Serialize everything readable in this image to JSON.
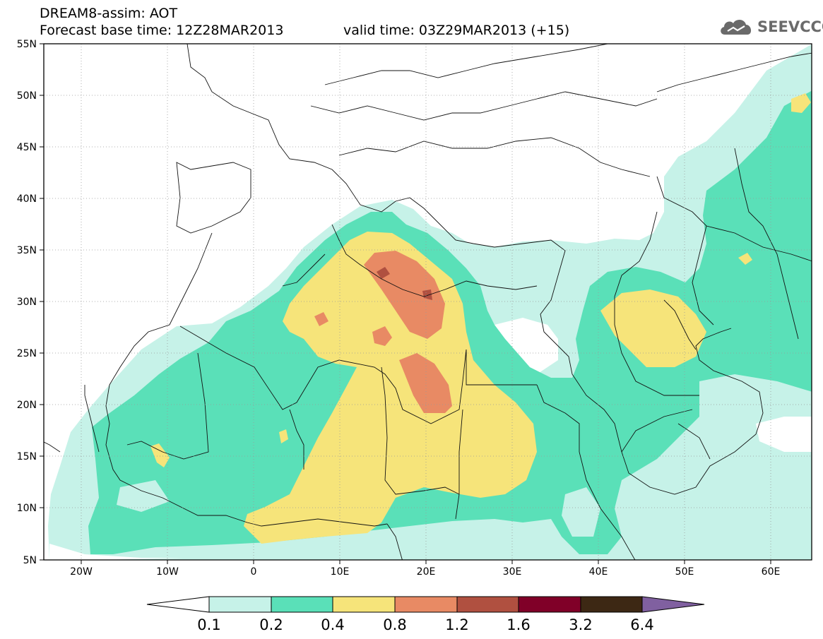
{
  "header": {
    "line1": "DREAM8-assim: AOT",
    "line2_base": "Forecast base time: 12Z28MAR2013",
    "line2_valid": "valid time: 03Z29MAR2013 (+15)"
  },
  "logo": {
    "text": "SEEVCCC",
    "icon": "cloud-icon"
  },
  "map": {
    "lat_labels": [
      "55N",
      "50N",
      "45N",
      "40N",
      "35N",
      "30N",
      "25N",
      "20N",
      "15N",
      "10N",
      "5N"
    ],
    "lon_labels": [
      "20W",
      "10W",
      "0",
      "10E",
      "20E",
      "30E",
      "40E",
      "50E",
      "60E"
    ]
  },
  "colorbar": {
    "labels": [
      "0.1",
      "0.2",
      "0.4",
      "0.8",
      "1.2",
      "1.6",
      "3.2",
      "6.4"
    ],
    "colors": [
      "#ffffff",
      "#c6f2e8",
      "#5ae0b8",
      "#f6e47a",
      "#e88a64",
      "#b05040",
      "#800028",
      "#3d2814",
      "#8060a0"
    ]
  }
}
